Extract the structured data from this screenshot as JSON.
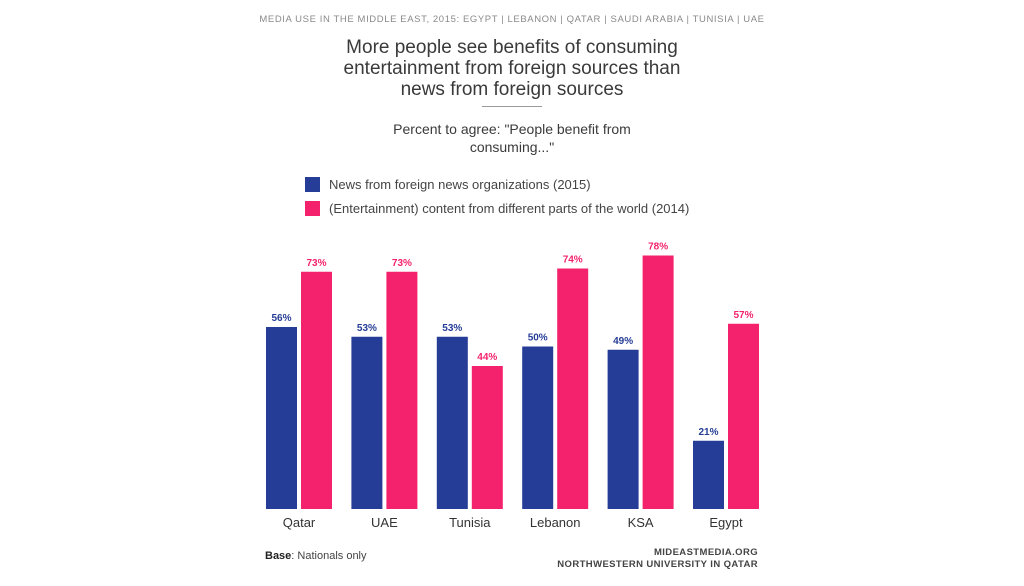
{
  "header": "MEDIA USE IN THE MIDDLE EAST, 2015: EGYPT | LEBANON | QATAR | SAUDI ARABIA | TUNISIA | UAE",
  "title_lines": [
    "More people see benefits of consuming",
    "entertainment from foreign sources than",
    "news from foreign sources"
  ],
  "subtitle_lines": [
    "Percent to agree: \"People benefit from",
    "consuming...\""
  ],
  "footer": {
    "base_label": "Base",
    "base_text": ": Nationals only",
    "source_line1": "MIDEASTMEDIA.ORG",
    "source_line2": "NORTHWESTERN UNIVERSITY IN QATAR"
  },
  "colors": {
    "news": "#253d96",
    "entertainment": "#f4226c"
  },
  "chart_data": {
    "type": "bar",
    "categories": [
      "Qatar",
      "UAE",
      "Tunisia",
      "Lebanon",
      "KSA",
      "Egypt"
    ],
    "series": [
      {
        "name": "News from foreign news organizations (2015)",
        "values": [
          56,
          53,
          53,
          50,
          49,
          21
        ],
        "labels": [
          "56%",
          "53%",
          "53%",
          "50%",
          "49%",
          "21%"
        ]
      },
      {
        "name": "(Entertainment) content from different parts of the world (2014)",
        "values": [
          73,
          73,
          44,
          74,
          78,
          57
        ],
        "labels": [
          "73%",
          "73%",
          "44%",
          "74%",
          "78%",
          "57%"
        ]
      }
    ],
    "ylim": [
      0,
      100
    ],
    "grid": false,
    "legend": "top"
  }
}
